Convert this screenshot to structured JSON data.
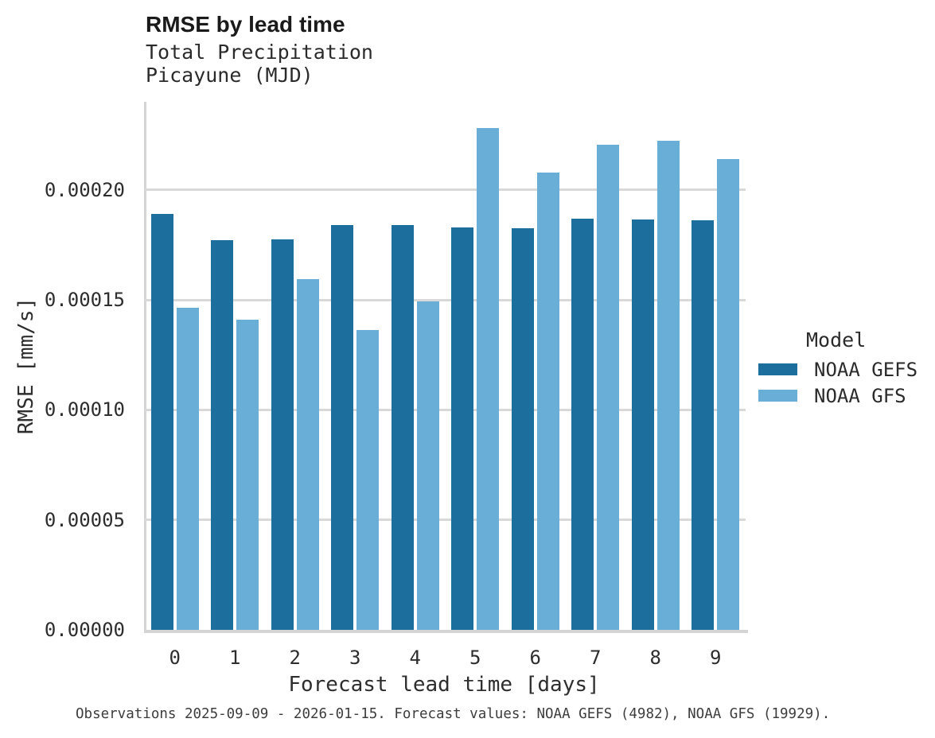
{
  "title": "RMSE by lead time",
  "subtitle": {
    "line1": "Total Precipitation",
    "line2": "Picayune (MJD)"
  },
  "footer": "Observations 2025-09-09 - 2026-01-15. Forecast values: NOAA GEFS (4982), NOAA GFS (19929).",
  "legend": {
    "title": "Model",
    "items": [
      {
        "label": "NOAA GEFS",
        "color": "#1c6e9d"
      },
      {
        "label": "NOAA GFS",
        "color": "#69aed6"
      }
    ]
  },
  "chart_data": {
    "type": "bar",
    "title": "RMSE by lead time",
    "subtitle": "Total Precipitation — Picayune (MJD)",
    "xlabel": "Forecast lead time [days]",
    "ylabel": "RMSE [mm/s]",
    "categories": [
      "0",
      "1",
      "2",
      "3",
      "4",
      "5",
      "6",
      "7",
      "8",
      "9"
    ],
    "series": [
      {
        "name": "NOAA GEFS",
        "color": "#1c6e9d",
        "values": [
          0.0001892,
          0.0001772,
          0.0001776,
          0.0001839,
          0.0001841,
          0.000183,
          0.0001827,
          0.000187,
          0.0001866,
          0.0001863
        ]
      },
      {
        "name": "NOAA GFS",
        "color": "#69aed6",
        "values": [
          0.0001465,
          0.0001411,
          0.0001593,
          0.0001363,
          0.0001492,
          0.0002279,
          0.000208,
          0.0002206,
          0.0002224,
          0.0002141
        ]
      }
    ],
    "ylim": [
      0,
      0.00024
    ],
    "yticks": [
      0.0,
      5e-05,
      0.0001,
      0.00015,
      0.0002
    ],
    "ytick_labels": [
      "0.00000",
      "0.00005",
      "0.00010",
      "0.00015",
      "0.00020"
    ],
    "grid": true,
    "grid_color": "#d9d9d9",
    "axis_color": "#d4d4d4",
    "legend_position": "right",
    "legend_title": "Model",
    "caption": "Observations 2025-09-09 - 2026-01-15. Forecast values: NOAA GEFS (4982), NOAA GFS (19929)."
  }
}
